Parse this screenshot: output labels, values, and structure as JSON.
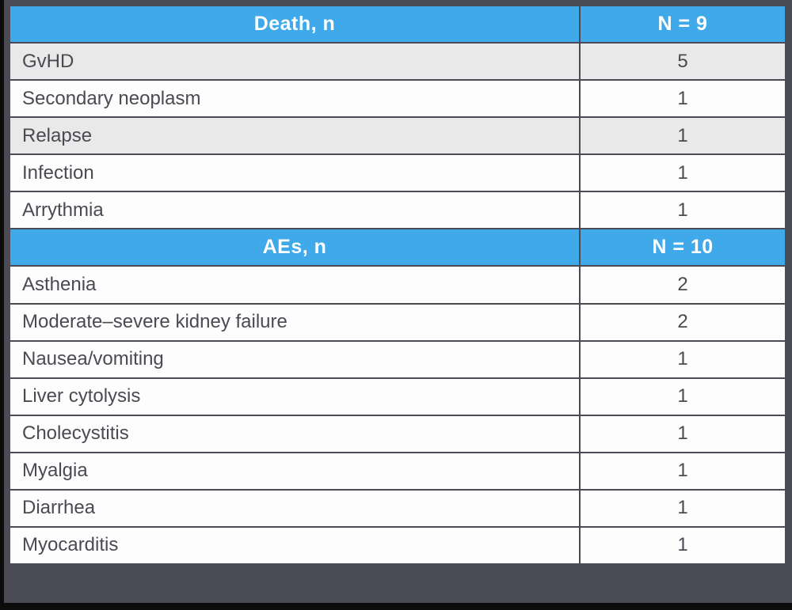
{
  "table": {
    "colors": {
      "header_bg": "#3fa9e9",
      "header_text": "#ffffff",
      "row_bg": "#fdfdfd",
      "row_shaded_bg": "#e9e9e9",
      "border": "#54545e",
      "outer_bg": "#4b4b55",
      "strip": "#0c0c0c",
      "text": "#4a4a52"
    },
    "sections": [
      {
        "header": {
          "label": "Death, n",
          "value": "N = 9"
        },
        "rows": [
          {
            "label": "GvHD",
            "value": "5"
          },
          {
            "label": "Secondary neoplasm",
            "value": "1"
          },
          {
            "label": "Relapse",
            "value": "1"
          },
          {
            "label": "Infection",
            "value": "1"
          },
          {
            "label": "Arrythmia",
            "value": "1"
          }
        ]
      },
      {
        "header": {
          "label": "AEs, n",
          "value": "N = 10"
        },
        "rows": [
          {
            "label": "Asthenia",
            "value": "2"
          },
          {
            "label": "Moderate–severe kidney failure",
            "value": "2"
          },
          {
            "label": "Nausea/vomiting",
            "value": "1"
          },
          {
            "label": "Liver cytolysis",
            "value": "1"
          },
          {
            "label": "Cholecystitis",
            "value": "1"
          },
          {
            "label": "Myalgia",
            "value": "1"
          },
          {
            "label": "Diarrhea",
            "value": "1"
          },
          {
            "label": "Myocarditis",
            "value": "1"
          }
        ]
      }
    ]
  }
}
